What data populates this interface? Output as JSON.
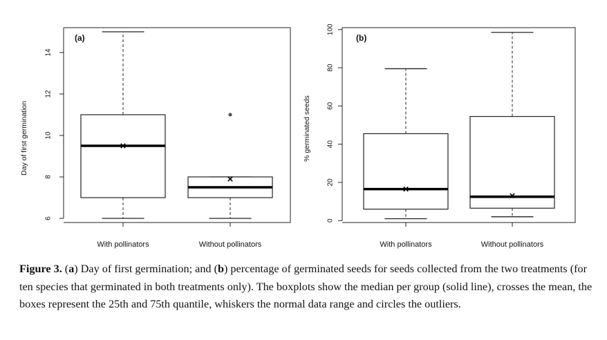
{
  "chart_data": [
    {
      "type": "box",
      "panel_label": "(a)",
      "ylabel": "Day of first germination",
      "ylim": [
        5.8,
        15.2
      ],
      "yticks": [
        6,
        8,
        10,
        12,
        14
      ],
      "categories": [
        "With pollinators",
        "Without pollinators"
      ],
      "boxes": [
        {
          "whisker_low": 6,
          "q1": 7,
          "median": 9.5,
          "q3": 11,
          "whisker_high": 15,
          "mean": 9.5,
          "outliers": []
        },
        {
          "whisker_low": 6,
          "q1": 7,
          "median": 7.5,
          "q3": 8,
          "whisker_high": 8,
          "mean": 7.9,
          "outliers": [
            11
          ]
        }
      ]
    },
    {
      "type": "box",
      "panel_label": "(b)",
      "ylabel": "% germinated seeds",
      "ylim": [
        -1,
        101
      ],
      "yticks": [
        0,
        20,
        40,
        60,
        80,
        100
      ],
      "categories": [
        "With pollinators",
        "Without pollinators"
      ],
      "boxes": [
        {
          "whisker_low": 1,
          "q1": 6,
          "median": 16.5,
          "q3": 45.5,
          "whisker_high": 79.5,
          "mean": 16.5,
          "outliers": []
        },
        {
          "whisker_low": 2,
          "q1": 6.5,
          "median": 12.5,
          "q3": 54.5,
          "whisker_high": 98.5,
          "mean": 13,
          "outliers": []
        }
      ]
    }
  ],
  "caption": {
    "figure_label": "Figure 3.",
    "part1": " (",
    "a_label": "a",
    "part2": ") Day of first germination; and (",
    "b_label": "b",
    "part3": ") percentage of germinated seeds for seeds collected from the two treatments (for ten species that germinated in both treatments only). The boxplots show the median per group (solid line), crosses the mean, the boxes represent the 25th and 75th quantile, whiskers the normal data range and circles the outliers."
  }
}
